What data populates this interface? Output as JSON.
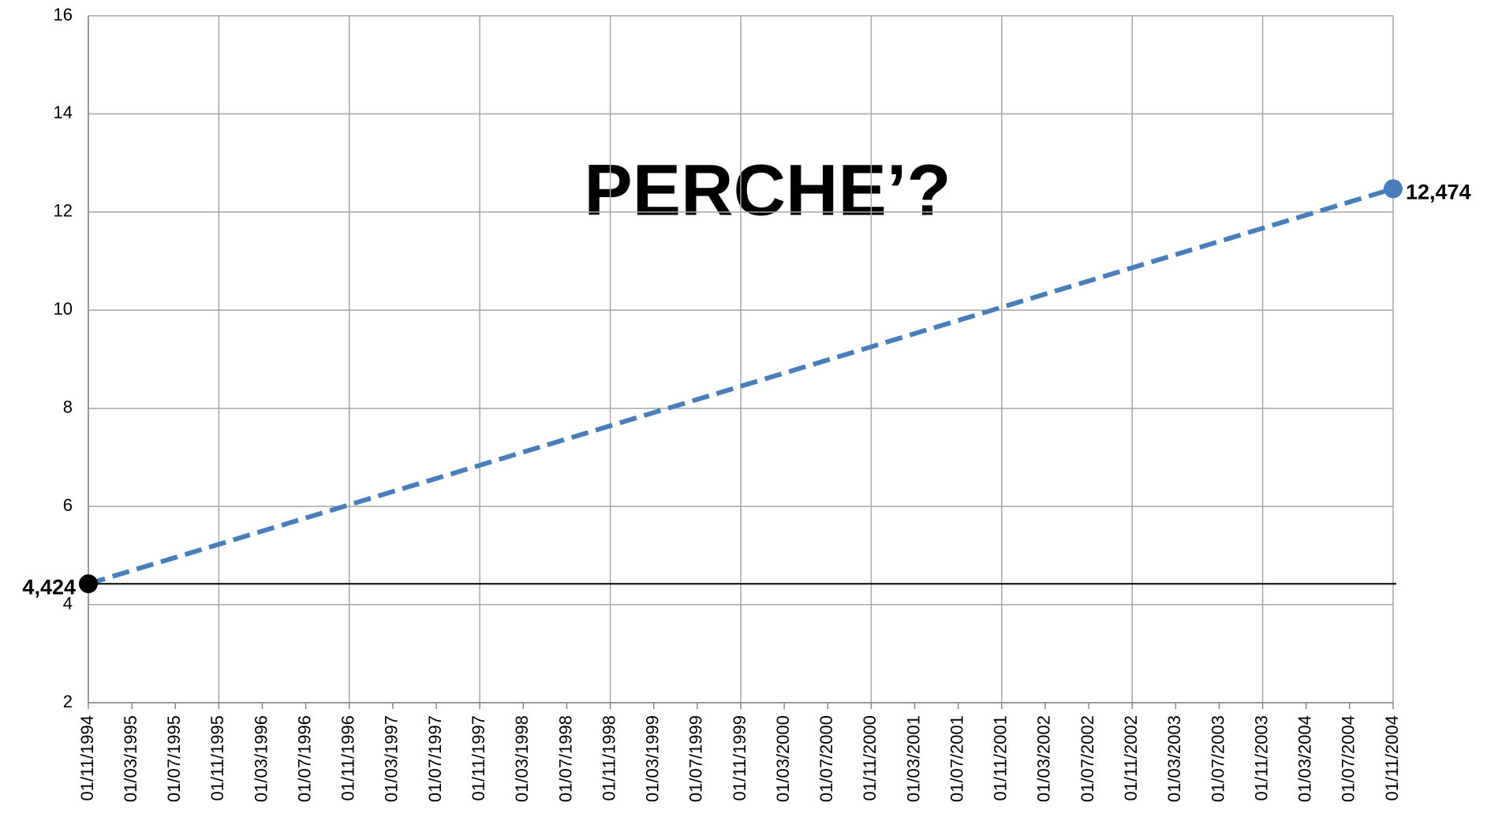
{
  "chart_data": {
    "type": "line",
    "annotation": "PERCHE’?",
    "x": [
      "01/11/1994",
      "01/11/2004"
    ],
    "series": [
      {
        "color": "#4a7ebb",
        "values": [
          4.424,
          12.474
        ],
        "value_labels": [
          "4,424",
          "12,474"
        ],
        "marker_colors": [
          "#000000",
          "#4a7ebb"
        ],
        "dashed": true
      }
    ],
    "reference_line": {
      "value": 4.424,
      "color": "#000000"
    },
    "xlim": [
      "01/11/1994",
      "01/11/2004"
    ],
    "xticks": [
      "01/11/1994",
      "01/03/1995",
      "01/07/1995",
      "01/11/1995",
      "01/03/1996",
      "01/07/1996",
      "01/11/1996",
      "01/03/1997",
      "01/07/1997",
      "01/11/1997",
      "01/03/1998",
      "01/07/1998",
      "01/11/1998",
      "01/03/1999",
      "01/07/1999",
      "01/11/1999",
      "01/03/2000",
      "01/07/2000",
      "01/11/2000",
      "01/03/2001",
      "01/07/2001",
      "01/11/2001",
      "01/03/2002",
      "01/07/2002",
      "01/11/2002",
      "01/03/2003",
      "01/07/2003",
      "01/11/2003",
      "01/03/2004",
      "01/07/2004",
      "01/11/2004"
    ],
    "ylim": [
      2,
      16
    ],
    "yticks": [
      2,
      4,
      6,
      8,
      10,
      12,
      14,
      16
    ],
    "grid": true
  }
}
